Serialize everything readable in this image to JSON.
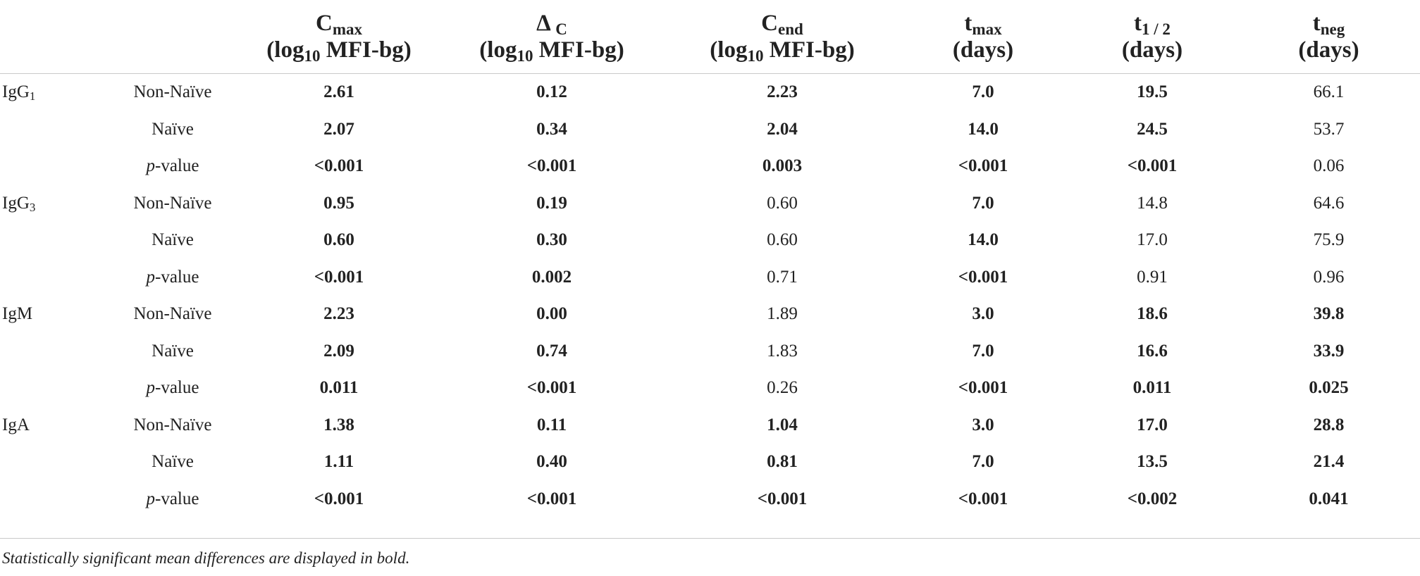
{
  "columns": [
    {
      "main": "C",
      "sub": "max",
      "unit": "(log",
      "unit_sub": "10",
      "unit_rest": " MFI-bg)"
    },
    {
      "main": "Δ",
      "sub": "C",
      "unit": "(log",
      "unit_sub": "10",
      "unit_rest": " MFI-bg)"
    },
    {
      "main": "C",
      "sub": "end",
      "unit": "(log",
      "unit_sub": "10",
      "unit_rest": " MFI-bg)"
    },
    {
      "main": "t",
      "sub": "max",
      "unit": "(days)"
    },
    {
      "main": "t",
      "sub": "1 / 2",
      "unit": "(days)"
    },
    {
      "main": "t",
      "sub": "neg",
      "unit": "(days)"
    }
  ],
  "groups": [
    {
      "name": "IgG",
      "name_sub": "1",
      "rows": [
        {
          "label": "Non-Naïve",
          "cells": [
            {
              "v": "2.61",
              "b": true
            },
            {
              "v": "0.12",
              "b": true
            },
            {
              "v": "2.23",
              "b": true
            },
            {
              "v": "7.0",
              "b": true
            },
            {
              "v": "19.5",
              "b": true
            },
            {
              "v": "66.1",
              "b": false
            }
          ]
        },
        {
          "label": "Naïve",
          "cells": [
            {
              "v": "2.07",
              "b": true
            },
            {
              "v": "0.34",
              "b": true
            },
            {
              "v": "2.04",
              "b": true
            },
            {
              "v": "14.0",
              "b": true
            },
            {
              "v": "24.5",
              "b": true
            },
            {
              "v": "53.7",
              "b": false
            }
          ]
        },
        {
          "label_italic": "p",
          "label": "-value",
          "cells": [
            {
              "v": "<0.001",
              "b": true
            },
            {
              "v": "<0.001",
              "b": true
            },
            {
              "v": "0.003",
              "b": true
            },
            {
              "v": "<0.001",
              "b": true
            },
            {
              "v": "<0.001",
              "b": true
            },
            {
              "v": "0.06",
              "b": false
            }
          ]
        }
      ]
    },
    {
      "name": "IgG",
      "name_sub": "3",
      "rows": [
        {
          "label": "Non-Naïve",
          "cells": [
            {
              "v": "0.95",
              "b": true
            },
            {
              "v": "0.19",
              "b": true
            },
            {
              "v": "0.60",
              "b": false
            },
            {
              "v": "7.0",
              "b": true
            },
            {
              "v": "14.8",
              "b": false
            },
            {
              "v": "64.6",
              "b": false
            }
          ]
        },
        {
          "label": "Naïve",
          "cells": [
            {
              "v": "0.60",
              "b": true
            },
            {
              "v": "0.30",
              "b": true
            },
            {
              "v": "0.60",
              "b": false
            },
            {
              "v": "14.0",
              "b": true
            },
            {
              "v": "17.0",
              "b": false
            },
            {
              "v": "75.9",
              "b": false
            }
          ]
        },
        {
          "label_italic": "p",
          "label": "-value",
          "cells": [
            {
              "v": "<0.001",
              "b": true
            },
            {
              "v": "0.002",
              "b": true
            },
            {
              "v": "0.71",
              "b": false
            },
            {
              "v": "<0.001",
              "b": true
            },
            {
              "v": "0.91",
              "b": false
            },
            {
              "v": "0.96",
              "b": false
            }
          ]
        }
      ]
    },
    {
      "name": "IgM",
      "name_sub": "",
      "rows": [
        {
          "label": "Non-Naïve",
          "cells": [
            {
              "v": "2.23",
              "b": true
            },
            {
              "v": "0.00",
              "b": true
            },
            {
              "v": "1.89",
              "b": false
            },
            {
              "v": "3.0",
              "b": true
            },
            {
              "v": "18.6",
              "b": true
            },
            {
              "v": "39.8",
              "b": true
            }
          ]
        },
        {
          "label": "Naïve",
          "cells": [
            {
              "v": "2.09",
              "b": true
            },
            {
              "v": "0.74",
              "b": true
            },
            {
              "v": "1.83",
              "b": false
            },
            {
              "v": "7.0",
              "b": true
            },
            {
              "v": "16.6",
              "b": true
            },
            {
              "v": "33.9",
              "b": true
            }
          ]
        },
        {
          "label_italic": "p",
          "label": "-value",
          "cells": [
            {
              "v": "0.011",
              "b": true
            },
            {
              "v": "<0.001",
              "b": true
            },
            {
              "v": "0.26",
              "b": false
            },
            {
              "v": "<0.001",
              "b": true
            },
            {
              "v": "0.011",
              "b": true
            },
            {
              "v": "0.025",
              "b": true
            }
          ]
        }
      ]
    },
    {
      "name": "IgA",
      "name_sub": "",
      "rows": [
        {
          "label": "Non-Naïve",
          "cells": [
            {
              "v": "1.38",
              "b": true
            },
            {
              "v": "0.11",
              "b": true
            },
            {
              "v": "1.04",
              "b": true
            },
            {
              "v": "3.0",
              "b": true
            },
            {
              "v": "17.0",
              "b": true
            },
            {
              "v": "28.8",
              "b": true
            }
          ]
        },
        {
          "label": "Naïve",
          "cells": [
            {
              "v": "1.11",
              "b": true
            },
            {
              "v": "0.40",
              "b": true
            },
            {
              "v": "0.81",
              "b": true
            },
            {
              "v": "7.0",
              "b": true
            },
            {
              "v": "13.5",
              "b": true
            },
            {
              "v": "21.4",
              "b": true
            }
          ]
        },
        {
          "label_italic": "p",
          "label": "-value",
          "cells": [
            {
              "v": "<0.001",
              "b": true
            },
            {
              "v": "<0.001",
              "b": true
            },
            {
              "v": "<0.001",
              "b": true
            },
            {
              "v": "<0.001",
              "b": true
            },
            {
              "v": "<0.002",
              "b": true
            },
            {
              "v": "0.041",
              "b": true
            }
          ]
        }
      ]
    }
  ],
  "footnote": "Statistically significant mean differences are displayed in bold."
}
